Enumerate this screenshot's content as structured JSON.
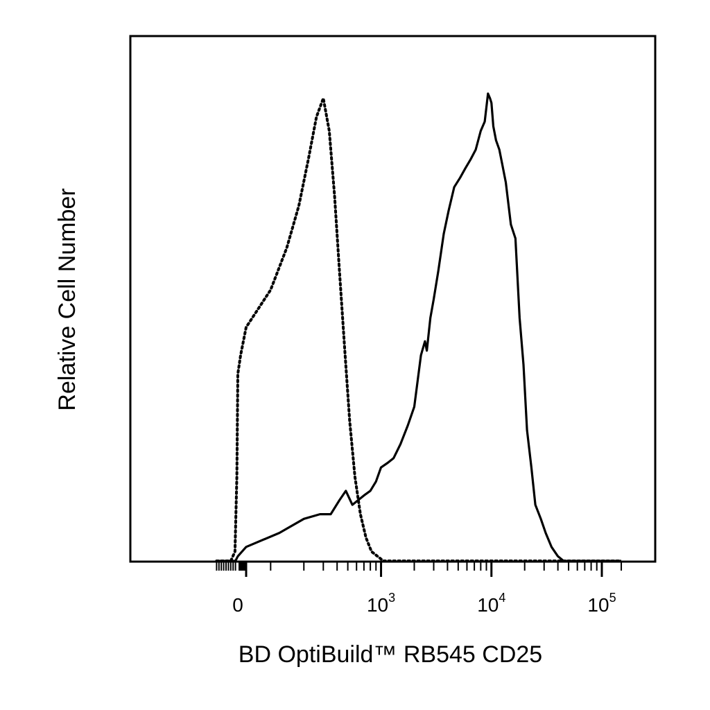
{
  "chart_data": {
    "type": "area",
    "xlabel": "BD OptiBuild™ RB545 CD25",
    "ylabel": "Relative Cell Number",
    "x_scale": "biexponential",
    "xlim": [
      -900,
      150000
    ],
    "ylim": [
      0,
      1.0
    ],
    "grid": false,
    "x_tick_labels": [
      {
        "value": 0,
        "base": "0",
        "exp": ""
      },
      {
        "value": 1000,
        "base": "10",
        "exp": "3"
      },
      {
        "value": 10000,
        "base": "10",
        "exp": "4"
      },
      {
        "value": 100000,
        "base": "10",
        "exp": "5"
      }
    ],
    "series": [
      {
        "style": "dotted",
        "color": "#000000",
        "x": [
          -900,
          -300,
          -120,
          -40,
          0,
          20,
          60,
          100,
          140,
          180,
          220,
          260,
          300,
          340,
          380,
          420,
          470,
          520,
          580,
          650,
          730,
          820,
          930,
          1050,
          1200,
          100000,
          150000
        ],
        "y": [
          0,
          0,
          0.02,
          0.18,
          0.4,
          0.44,
          0.5,
          0.58,
          0.67,
          0.76,
          0.86,
          0.95,
          0.99,
          0.92,
          0.78,
          0.62,
          0.45,
          0.3,
          0.18,
          0.1,
          0.05,
          0.02,
          0.01,
          0,
          0,
          0,
          0
        ]
      },
      {
        "style": "solid",
        "color": "#000000",
        "x": [
          -900,
          -100,
          0,
          60,
          120,
          200,
          280,
          350,
          420,
          480,
          550,
          620,
          700,
          800,
          900,
          1000,
          1150,
          1300,
          1500,
          1750,
          2000,
          2300,
          2500,
          2600,
          2800,
          3000,
          3300,
          3700,
          4100,
          4600,
          5200,
          5800,
          6500,
          7200,
          8000,
          8700,
          9300,
          9700,
          10000,
          10400,
          11000,
          11800,
          12500,
          13500,
          15000,
          16500,
          18000,
          19500,
          21000,
          23000,
          25000,
          28000,
          31000,
          35000,
          40000,
          45000,
          50000,
          55000,
          60000,
          70000,
          85000,
          100000,
          150000
        ],
        "y": [
          0,
          0,
          0.01,
          0.03,
          0.06,
          0.09,
          0.1,
          0.1,
          0.13,
          0.15,
          0.12,
          0.13,
          0.14,
          0.15,
          0.17,
          0.2,
          0.21,
          0.22,
          0.25,
          0.29,
          0.33,
          0.44,
          0.47,
          0.45,
          0.52,
          0.56,
          0.62,
          0.7,
          0.75,
          0.8,
          0.82,
          0.84,
          0.86,
          0.88,
          0.92,
          0.94,
          1.0,
          0.99,
          0.98,
          0.93,
          0.9,
          0.88,
          0.85,
          0.81,
          0.72,
          0.69,
          0.52,
          0.42,
          0.28,
          0.2,
          0.12,
          0.09,
          0.06,
          0.03,
          0.01,
          0,
          0,
          0,
          0,
          0,
          0,
          0,
          0
        ]
      }
    ]
  }
}
